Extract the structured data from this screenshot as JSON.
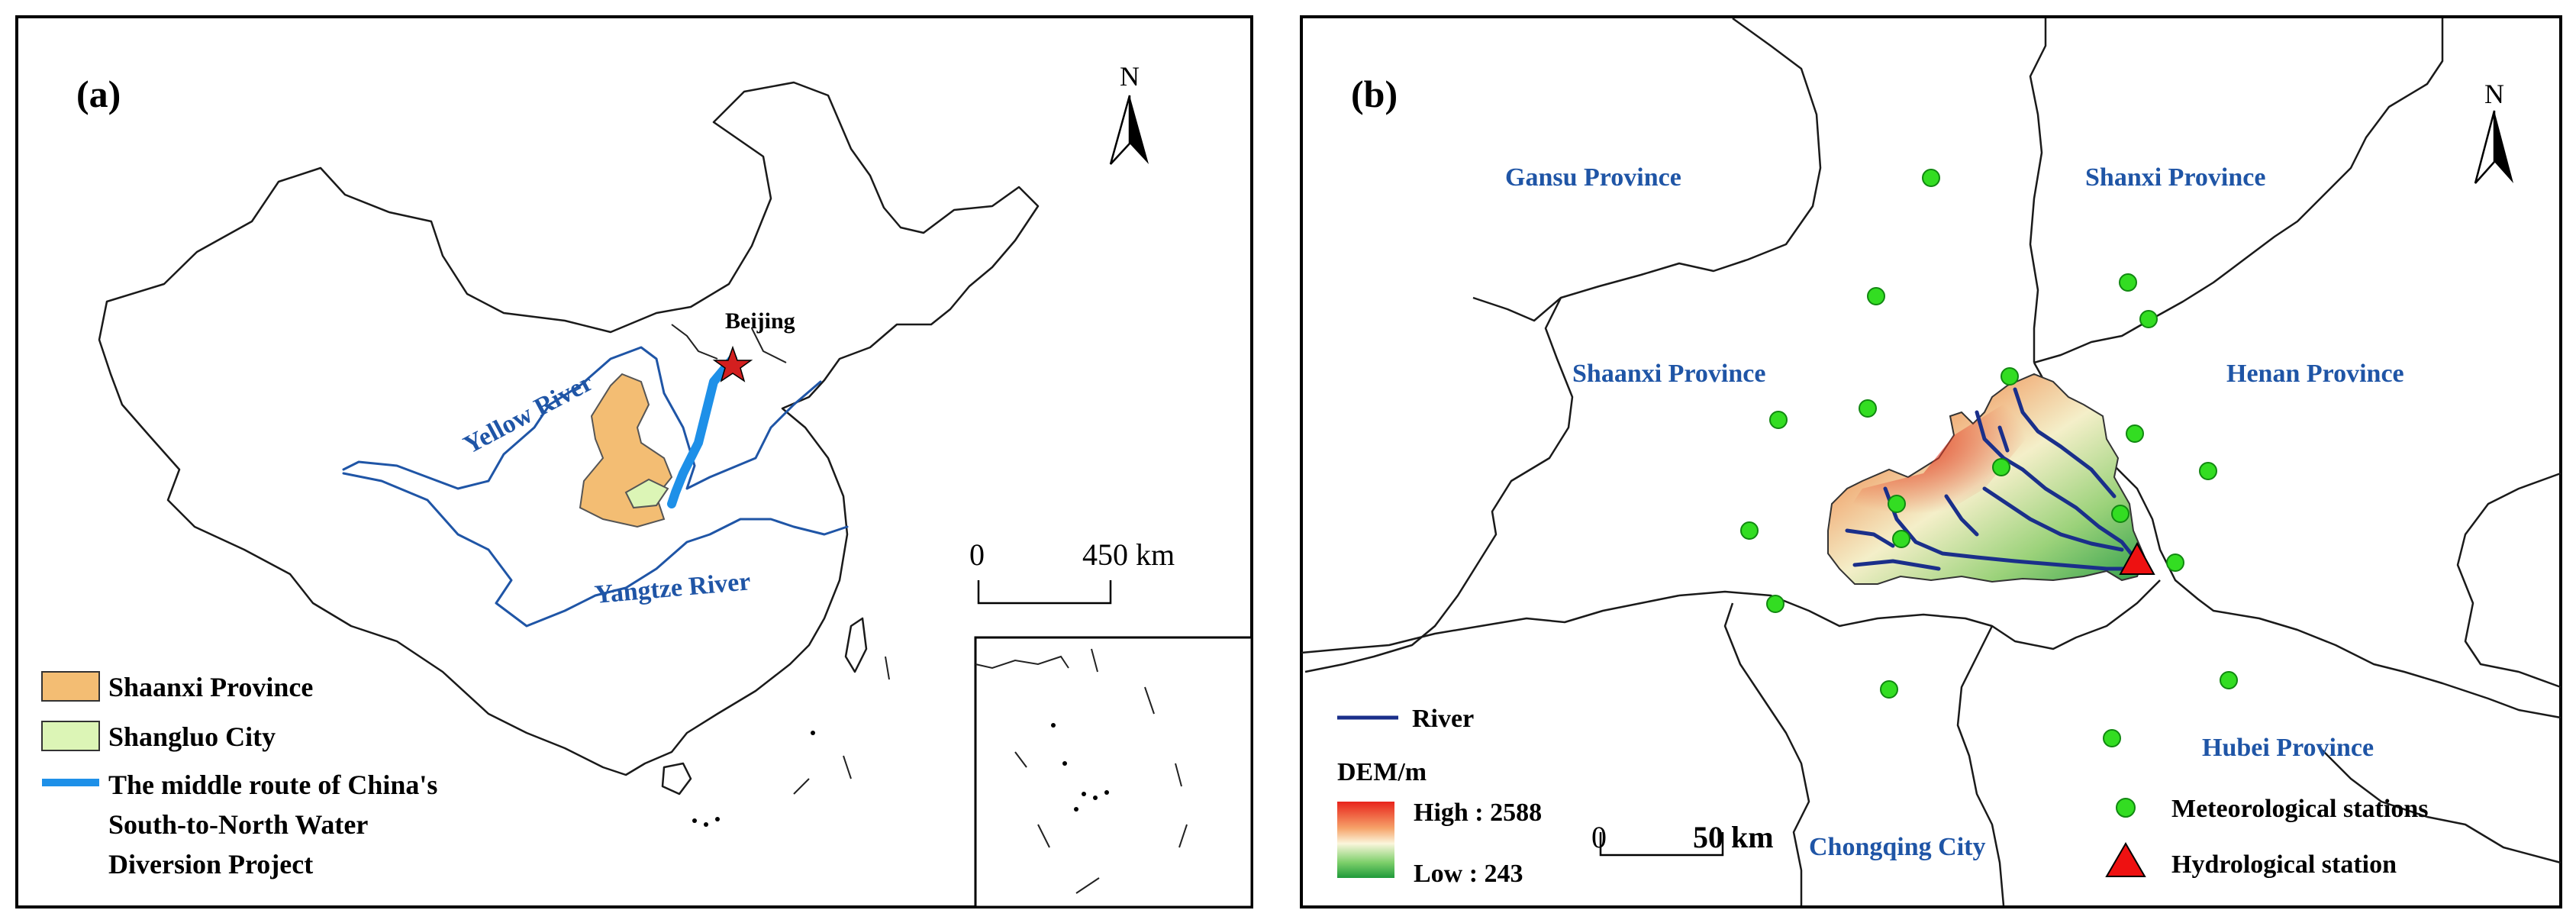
{
  "panel_a": {
    "label": "(a)",
    "north": "N",
    "places": {
      "beijing": "Beijing"
    },
    "rivers": {
      "yellow": "Yellow River",
      "yangtze": "Yangtze River"
    },
    "scale": {
      "zero": "0",
      "end": "450 km"
    },
    "legend": {
      "shaanxi": "Shaanxi Province",
      "shangluo": "Shangluo City",
      "route_line1": "The middle route of China's",
      "route_line2": "South-to-North Water",
      "route_line3": "Diversion Project"
    },
    "colors": {
      "shaanxi": "#f3bd73",
      "shangluo": "#dcf5b6",
      "route": "#1e90e8"
    }
  },
  "panel_b": {
    "label": "(b)",
    "north": "N",
    "provinces": {
      "gansu": "Gansu Province",
      "shanxi": "Shanxi Province",
      "shaanxi": "Shaanxi Province",
      "henan": "Henan Province",
      "hubei": "Hubei Province",
      "chongqing": "Chongqing City"
    },
    "legend": {
      "river": "River",
      "dem_title": "DEM/m",
      "dem_high": "High : 2588",
      "dem_low": "Low : 243",
      "met_stations": "Meteorological stations",
      "hydro_station": "Hydrological station"
    },
    "scale": {
      "zero": "0",
      "end": "50 km"
    },
    "colors": {
      "station": "#33dd22",
      "hydro": "#ee1111",
      "river": "#1a2f8a"
    }
  }
}
